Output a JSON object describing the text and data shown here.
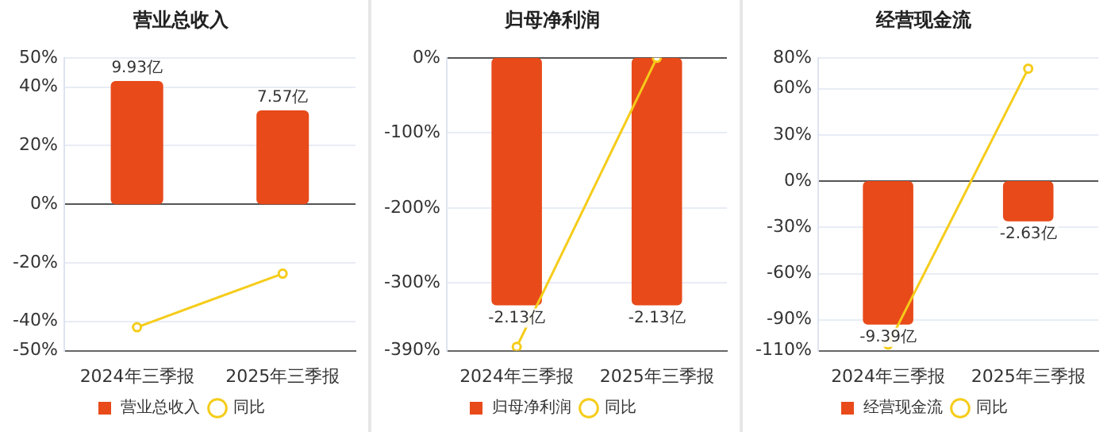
{
  "chart_data": [
    {
      "type": "bar",
      "title": "营业总收入",
      "categories": [
        "2024年三季报",
        "2025年三季报"
      ],
      "series": [
        {
          "name": "营业总收入",
          "axis": "y2",
          "color": "#e84a1a",
          "values": [
            9.93,
            7.57
          ],
          "value_labels": [
            "9.93亿",
            "7.57亿"
          ]
        },
        {
          "name": "同比",
          "type": "line",
          "color": "#f5cc1a",
          "values": [
            -42,
            -23.7
          ]
        }
      ],
      "ylim": [
        -50,
        50
      ],
      "yticks": [
        {
          "value": -50,
          "label": "-50%"
        },
        {
          "value": -40,
          "label": "-40%"
        },
        {
          "value": -20,
          "label": "-20%"
        },
        {
          "value": 0,
          "label": "0%"
        },
        {
          "value": 20,
          "label": "20%"
        },
        {
          "value": 40,
          "label": "40%"
        },
        {
          "value": 50,
          "label": "50%"
        }
      ],
      "y2lim": [
        -11.8,
        11.8
      ],
      "grid": "y",
      "legend": "bottom",
      "marker": "circle"
    },
    {
      "type": "bar",
      "title": "归母净利润",
      "categories": [
        "2024年三季报",
        "2025年三季报"
      ],
      "series": [
        {
          "name": "归母净利润",
          "axis": "y2",
          "color": "#e84a1a",
          "values": [
            -2.13,
            -2.13
          ],
          "value_labels": [
            "-2.13亿",
            "-2.13亿"
          ]
        },
        {
          "name": "同比",
          "type": "line",
          "color": "#f5cc1a",
          "values": [
            -385,
            0
          ]
        }
      ],
      "ylim": [
        -390,
        0
      ],
      "yticks": [
        {
          "value": -390,
          "label": "-390%"
        },
        {
          "value": -300,
          "label": "-300%"
        },
        {
          "value": -200,
          "label": "-200%"
        },
        {
          "value": -100,
          "label": "-100%"
        },
        {
          "value": 0,
          "label": "0%"
        }
      ],
      "y2lim": [
        -2.52,
        0
      ],
      "grid": "y",
      "legend": "bottom",
      "marker": "circle"
    },
    {
      "type": "bar",
      "title": "经营现金流",
      "categories": [
        "2024年三季报",
        "2025年三季报"
      ],
      "series": [
        {
          "name": "经营现金流",
          "axis": "y2",
          "color": "#e84a1a",
          "values": [
            -9.39,
            -2.63
          ],
          "value_labels": [
            "-9.39亿",
            "-2.63亿"
          ]
        },
        {
          "name": "同比",
          "type": "line",
          "color": "#f5cc1a",
          "values": [
            -106,
            73
          ]
        }
      ],
      "ylim": [
        -110,
        80
      ],
      "yticks": [
        {
          "value": -110,
          "label": "-110%"
        },
        {
          "value": -90,
          "label": "-90%"
        },
        {
          "value": -60,
          "label": "-60%"
        },
        {
          "value": -30,
          "label": "-30%"
        },
        {
          "value": 0,
          "label": "0%"
        },
        {
          "value": 30,
          "label": "30%"
        },
        {
          "value": 60,
          "label": "60%"
        },
        {
          "value": 80,
          "label": "80%"
        }
      ],
      "y2lim": [
        -11.1,
        8.07
      ],
      "grid": "y",
      "legend": "bottom",
      "marker": "circle"
    }
  ]
}
